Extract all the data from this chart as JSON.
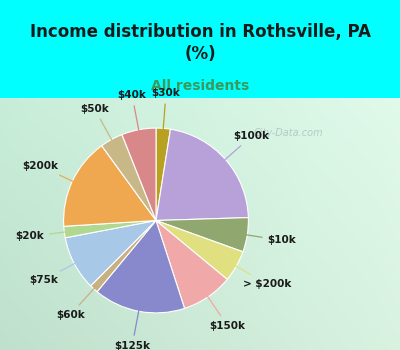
{
  "title": "Income distribution in Rothsville, PA\n(%)",
  "subtitle": "All residents",
  "title_color": "#1a1a1a",
  "subtitle_color": "#3a9a5c",
  "background_top": "#00ffff",
  "watermark": "City-Data.com",
  "segments": [
    {
      "label": "$30k",
      "value": 2.5,
      "color": "#b8a020"
    },
    {
      "label": "$100k",
      "value": 22.0,
      "color": "#b8a0d8"
    },
    {
      "label": "$10k",
      "value": 6.0,
      "color": "#90a870"
    },
    {
      "label": "> $200k",
      "value": 5.5,
      "color": "#e0e080"
    },
    {
      "label": "$150k",
      "value": 9.0,
      "color": "#f0a8a8"
    },
    {
      "label": "$125k",
      "value": 16.0,
      "color": "#8888cc"
    },
    {
      "label": "$60k",
      "value": 1.5,
      "color": "#c8b080"
    },
    {
      "label": "$75k",
      "value": 9.5,
      "color": "#a8c8e8"
    },
    {
      "label": "$20k",
      "value": 2.0,
      "color": "#b0d890"
    },
    {
      "label": "$200k",
      "value": 16.0,
      "color": "#f0a850"
    },
    {
      "label": "$50k",
      "value": 4.0,
      "color": "#c8b888"
    },
    {
      "label": "$40k",
      "value": 6.0,
      "color": "#d88888"
    }
  ],
  "label_fontsize": 7.5,
  "figsize": [
    4.0,
    3.5
  ],
  "dpi": 100
}
